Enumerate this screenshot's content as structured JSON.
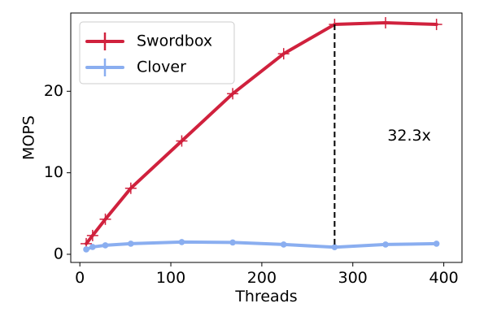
{
  "chart_data": {
    "type": "line",
    "title": "",
    "xlabel": "Threads",
    "ylabel": "MOPS",
    "xlim": [
      -10,
      420
    ],
    "ylim": [
      -1,
      29.6
    ],
    "xticks": [
      0,
      100,
      200,
      300,
      400
    ],
    "yticks": [
      0,
      10,
      20
    ],
    "grid": false,
    "legend_position": "top-left",
    "series": [
      {
        "name": "Swordbox",
        "color": "#d0213d",
        "marker": "plus",
        "x": [
          7,
          14,
          28,
          56,
          112,
          168,
          224,
          280,
          336,
          392
        ],
        "y": [
          1.3,
          2.3,
          4.3,
          8.1,
          13.9,
          19.7,
          24.6,
          28.2,
          28.4,
          28.2
        ]
      },
      {
        "name": "Clover",
        "color": "#8aaef0",
        "marker": "dot",
        "x": [
          7,
          14,
          28,
          56,
          112,
          168,
          224,
          280,
          336,
          392
        ],
        "y": [
          0.6,
          0.9,
          1.1,
          1.3,
          1.5,
          1.45,
          1.2,
          0.87,
          1.2,
          1.3
        ]
      }
    ],
    "annotations": [
      {
        "type": "vertical-dashed-line",
        "x": 280,
        "y_from": 0.87,
        "y_to": 28.2
      },
      {
        "type": "text",
        "text": "32.3x",
        "x": 362,
        "y": 14.5
      }
    ]
  }
}
